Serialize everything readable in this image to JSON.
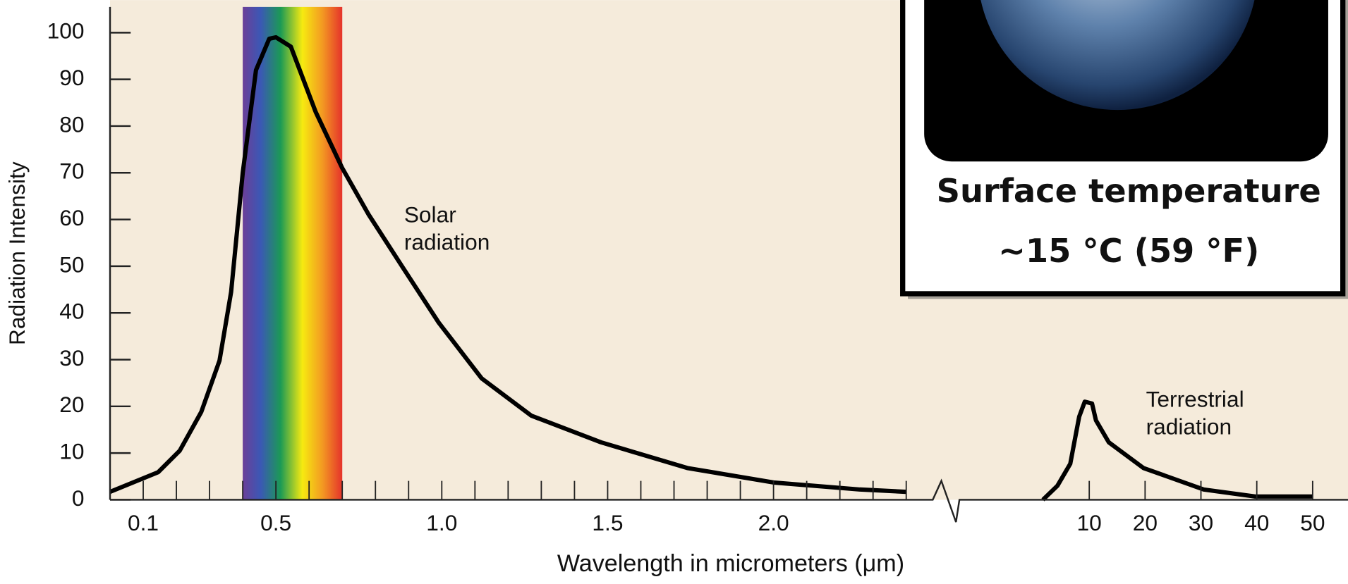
{
  "chart_data": [
    {
      "type": "line",
      "y_label": "Radiation Intensity",
      "x_label": "Wavelength in micrometers (μm)",
      "annotation_lines": [
        "Solar",
        "radiation"
      ],
      "x": [
        0.0,
        0.145,
        0.21,
        0.275,
        0.33,
        0.365,
        0.4,
        0.44,
        0.48,
        0.5,
        0.545,
        0.62,
        0.7,
        0.78,
        0.88,
        0.99,
        1.12,
        1.27,
        1.48,
        1.74,
        2.0,
        2.26,
        2.4
      ],
      "values": [
        1.7,
        5.9,
        10.5,
        18.8,
        29.8,
        44.5,
        70,
        92,
        98.7,
        99,
        97,
        83,
        71,
        61,
        50,
        38,
        26,
        18,
        12.3,
        6.8,
        3.7,
        2.2,
        1.7
      ],
      "color": "#000000",
      "visible_band": [
        0.4,
        0.7
      ],
      "xlim": [
        0,
        2.48
      ],
      "xticks": [
        0.1,
        0.5,
        {
          "value": 1.0,
          "label": "1.0"
        },
        1.5,
        {
          "value": 2.0,
          "label": "2.0"
        }
      ],
      "x_minor_ticks": [
        0.2,
        0.3,
        0.4,
        0.6,
        0.7,
        0.8,
        0.9,
        1.1,
        1.2,
        1.3,
        1.4,
        1.6,
        1.7,
        1.8,
        1.9,
        2.1,
        2.2,
        2.3,
        2.4
      ],
      "ylim": [
        0,
        105.5
      ],
      "yticks": [
        0,
        10,
        20,
        30,
        40,
        50,
        60,
        70,
        80,
        90,
        100
      ]
    },
    {
      "type": "line",
      "annotation_lines": [
        "Terrestrial",
        "radiation"
      ],
      "x": [
        1.7,
        4.3,
        6.6,
        8.2,
        9.2,
        10.5,
        11.2,
        13.5,
        19.7,
        30.5,
        39.7,
        50
      ],
      "values": [
        0,
        3,
        7.7,
        17.8,
        21,
        20.6,
        17,
        12.3,
        6.8,
        2.2,
        0.7,
        0.7
      ],
      "color": "#000000",
      "xlim": [
        -13.4,
        55.1
      ],
      "xticks": [
        10,
        20,
        30,
        40,
        50
      ]
    }
  ],
  "inset": {
    "title": "Surface temperature",
    "subtitle": "~15 °C (59 °F)"
  }
}
